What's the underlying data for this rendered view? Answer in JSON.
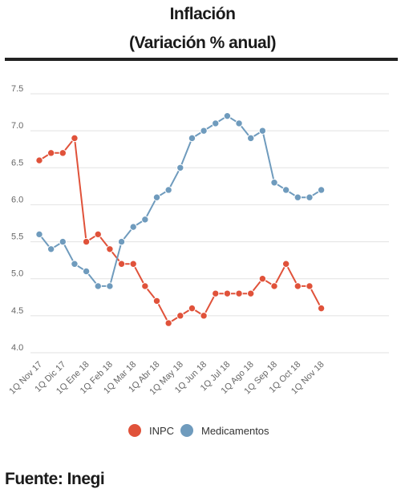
{
  "title": "Inflación",
  "subtitle": "(Variación % anual)",
  "source": "Fuente: Inegi",
  "colors": {
    "inpc": "#e0523a",
    "medicamentos": "#6f9bbd",
    "grid": "#e2e2e2",
    "rule": "#222222"
  },
  "chart_data": {
    "type": "line",
    "title": "Inflación",
    "subtitle": "(Variación % anual)",
    "xlabel": "",
    "ylabel": "",
    "ylim": [
      4.0,
      7.5
    ],
    "yticks": [
      7.5,
      7.0,
      6.5,
      6.0,
      5.5,
      5.0,
      4.5,
      4.0
    ],
    "ytick_labels": [
      "7.5",
      "7.0",
      "6.5",
      "6.0",
      "5.5",
      "5.0",
      "4.5",
      "4.0"
    ],
    "x_tick_labels": [
      "1Q Nov 17",
      "1Q Dic 17",
      "1Q Ene 18",
      "1Q Feb 18",
      "1Q Mar 18",
      "1Q Abr 18",
      "1Q May 18",
      "1Q Jun 18",
      "1Q Jul 18",
      "1Q Ago 18",
      "1Q Sep 18",
      "1Q Oct 18",
      "1Q Nov 18"
    ],
    "points_per_label": 2,
    "grid": true,
    "legend_position": "bottom-center",
    "series": [
      {
        "name": "INPC",
        "color": "#e0523a",
        "values": [
          6.6,
          6.7,
          6.7,
          6.9,
          5.5,
          5.6,
          5.4,
          5.2,
          5.2,
          4.9,
          4.7,
          4.4,
          4.5,
          4.6,
          4.5,
          4.8,
          4.8,
          4.8,
          4.8,
          5.0,
          4.9,
          5.2,
          4.9,
          4.9,
          4.6
        ]
      },
      {
        "name": "Medicamentos",
        "color": "#6f9bbd",
        "values": [
          5.6,
          5.4,
          5.5,
          5.2,
          5.1,
          4.9,
          4.9,
          5.5,
          5.7,
          5.8,
          6.1,
          6.2,
          6.5,
          6.9,
          7.0,
          7.1,
          7.2,
          7.1,
          6.9,
          7.0,
          6.3,
          6.2,
          6.1,
          6.1,
          6.2
        ]
      }
    ]
  }
}
